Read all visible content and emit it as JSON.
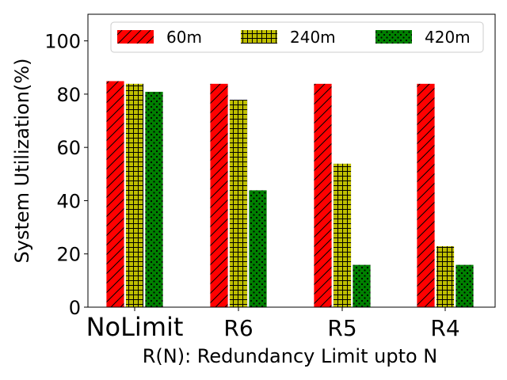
{
  "chart_data": {
    "type": "bar",
    "title": "",
    "xlabel": "R(N): Redundancy Limit upto N",
    "ylabel": "System Utilization(%)",
    "ylim": [
      0,
      110
    ],
    "yticks": [
      0,
      20,
      40,
      60,
      80,
      100
    ],
    "categories": [
      "NoLimit",
      "R6",
      "R5",
      "R4"
    ],
    "legend_placement": "top",
    "grid": false,
    "series": [
      {
        "name": "60m",
        "values": [
          85,
          84,
          84,
          84
        ],
        "color": "#ff0000",
        "pattern": "diagonal-hatch"
      },
      {
        "name": "240m",
        "values": [
          84,
          78,
          54,
          23
        ],
        "color": "#bfbf00",
        "pattern": "grid-hatch"
      },
      {
        "name": "420m",
        "values": [
          81,
          44,
          16,
          16
        ],
        "color": "#008000",
        "pattern": "dot-hatch"
      }
    ]
  }
}
